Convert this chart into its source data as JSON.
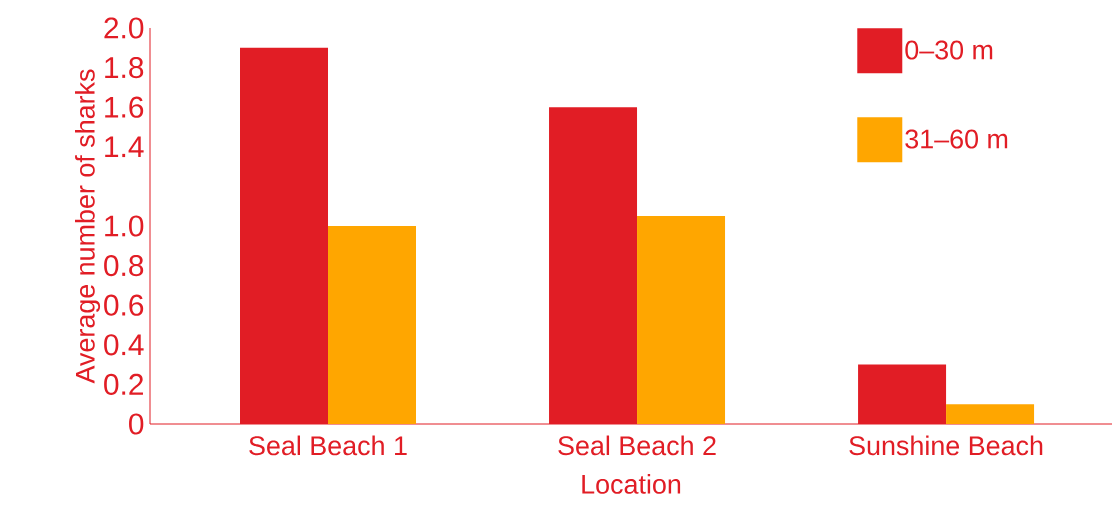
{
  "chart_data": {
    "type": "bar",
    "xlabel": "Location",
    "ylabel": "Average number of sharks",
    "categories": [
      "Seal Beach 1",
      "Seal Beach 2",
      "Sunshine Beach"
    ],
    "series": [
      {
        "name": "0–30 m",
        "color": "#e11d25",
        "values": [
          1.9,
          1.6,
          0.3
        ]
      },
      {
        "name": "31–60 m",
        "color": "#ffa600",
        "values": [
          1.0,
          1.05,
          0.1
        ]
      }
    ],
    "ylim": [
      0,
      2.0
    ],
    "yticks": [
      0,
      0.2,
      0.4,
      0.6,
      0.8,
      {
        "value": 1.0,
        "label": "1.0"
      },
      1.4,
      1.6,
      1.8,
      {
        "value": 2.0,
        "label": "2.0"
      }
    ],
    "legend": "top right",
    "grid": false
  }
}
